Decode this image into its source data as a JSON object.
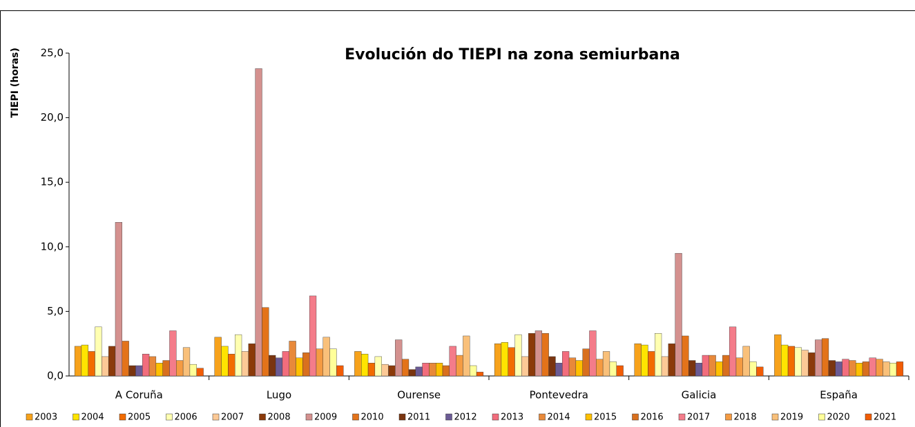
{
  "chart_data": {
    "type": "bar",
    "title": "Evolución do TIEPI na zona semiurbana",
    "y_label": "TIEPI (horas)",
    "categories": [
      "A Coruña",
      "Lugo",
      "Ourense",
      "Pontevedra",
      "Galicia",
      "España"
    ],
    "ylim": [
      0,
      25
    ],
    "yticks": [
      {
        "value": 0,
        "label": "0,0"
      },
      {
        "value": 5,
        "label": "5,0"
      },
      {
        "value": 10,
        "label": "10,0"
      },
      {
        "value": 15,
        "label": "15,0"
      },
      {
        "value": 20,
        "label": "20,0"
      },
      {
        "value": 25,
        "label": "25,0"
      }
    ],
    "series": [
      {
        "name": "2003",
        "color": "#F7A21B",
        "values": [
          2.3,
          3.0,
          1.9,
          2.5,
          2.5,
          3.2
        ]
      },
      {
        "name": "2004",
        "color": "#FFE400",
        "values": [
          2.4,
          2.3,
          1.7,
          2.6,
          2.4,
          2.4
        ]
      },
      {
        "name": "2005",
        "color": "#F26B00",
        "values": [
          1.9,
          1.7,
          1.0,
          2.2,
          1.9,
          2.3
        ]
      },
      {
        "name": "2006",
        "color": "#FFFFB0",
        "values": [
          3.8,
          3.2,
          1.5,
          3.2,
          3.3,
          2.2
        ]
      },
      {
        "name": "2007",
        "color": "#FCC996",
        "values": [
          1.5,
          1.9,
          0.9,
          1.5,
          1.5,
          2.0
        ]
      },
      {
        "name": "2008",
        "color": "#8B3A0A",
        "values": [
          2.3,
          2.5,
          0.8,
          3.3,
          2.5,
          1.8
        ]
      },
      {
        "name": "2009",
        "color": "#D4918F",
        "values": [
          11.9,
          23.8,
          2.8,
          3.5,
          9.5,
          2.8
        ]
      },
      {
        "name": "2010",
        "color": "#E3731A",
        "values": [
          2.7,
          5.3,
          1.3,
          3.3,
          3.1,
          2.9
        ]
      },
      {
        "name": "2011",
        "color": "#7A3510",
        "values": [
          0.8,
          1.6,
          0.5,
          1.5,
          1.2,
          1.2
        ]
      },
      {
        "name": "2012",
        "color": "#6B5B95",
        "values": [
          0.8,
          1.4,
          0.7,
          1.0,
          1.0,
          1.1
        ]
      },
      {
        "name": "2013",
        "color": "#F26D7D",
        "values": [
          1.7,
          1.9,
          1.0,
          1.9,
          1.6,
          1.3
        ]
      },
      {
        "name": "2014",
        "color": "#E8893A",
        "values": [
          1.5,
          2.7,
          1.0,
          1.4,
          1.6,
          1.2
        ]
      },
      {
        "name": "2015",
        "color": "#FFC000",
        "values": [
          1.0,
          1.4,
          1.0,
          1.2,
          1.1,
          1.0
        ]
      },
      {
        "name": "2016",
        "color": "#D9701E",
        "values": [
          1.2,
          1.8,
          0.8,
          2.1,
          1.6,
          1.1
        ]
      },
      {
        "name": "2017",
        "color": "#F47C8A",
        "values": [
          3.5,
          6.2,
          2.3,
          3.5,
          3.8,
          1.4
        ]
      },
      {
        "name": "2018",
        "color": "#F59B42",
        "values": [
          1.2,
          2.1,
          1.6,
          1.3,
          1.4,
          1.3
        ]
      },
      {
        "name": "2019",
        "color": "#F9C07A",
        "values": [
          2.2,
          3.0,
          3.1,
          1.9,
          2.3,
          1.1
        ]
      },
      {
        "name": "2020",
        "color": "#FFFF99",
        "values": [
          0.9,
          2.1,
          0.8,
          1.1,
          1.1,
          1.0
        ]
      },
      {
        "name": "2021",
        "color": "#F25C05",
        "values": [
          0.6,
          0.8,
          0.3,
          0.8,
          0.7,
          1.1
        ]
      }
    ]
  }
}
